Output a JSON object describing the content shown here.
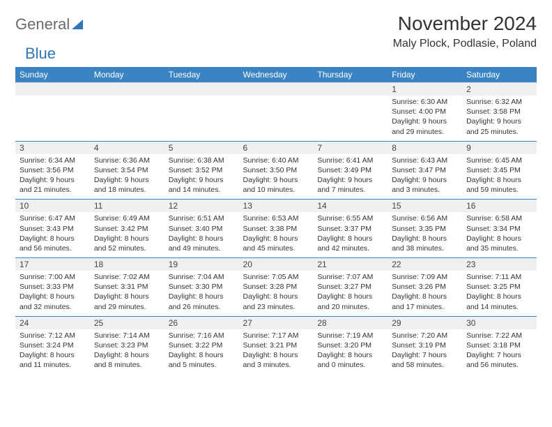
{
  "brand": {
    "part1": "General",
    "part2": "Blue"
  },
  "title": "November 2024",
  "location": "Maly Plock, Podlasie, Poland",
  "colors": {
    "header_bg": "#3b84c4",
    "header_text": "#ffffff",
    "daynum_bg": "#eef0f2",
    "border": "#3b84c4",
    "text": "#333333",
    "brand_gray": "#6a6a6a",
    "brand_blue": "#2e77b8"
  },
  "dow": [
    "Sunday",
    "Monday",
    "Tuesday",
    "Wednesday",
    "Thursday",
    "Friday",
    "Saturday"
  ],
  "weeks": [
    [
      {
        "n": "",
        "lines": [
          "",
          "",
          "",
          ""
        ]
      },
      {
        "n": "",
        "lines": [
          "",
          "",
          "",
          ""
        ]
      },
      {
        "n": "",
        "lines": [
          "",
          "",
          "",
          ""
        ]
      },
      {
        "n": "",
        "lines": [
          "",
          "",
          "",
          ""
        ]
      },
      {
        "n": "",
        "lines": [
          "",
          "",
          "",
          ""
        ]
      },
      {
        "n": "1",
        "lines": [
          "Sunrise: 6:30 AM",
          "Sunset: 4:00 PM",
          "Daylight: 9 hours",
          "and 29 minutes."
        ]
      },
      {
        "n": "2",
        "lines": [
          "Sunrise: 6:32 AM",
          "Sunset: 3:58 PM",
          "Daylight: 9 hours",
          "and 25 minutes."
        ]
      }
    ],
    [
      {
        "n": "3",
        "lines": [
          "Sunrise: 6:34 AM",
          "Sunset: 3:56 PM",
          "Daylight: 9 hours",
          "and 21 minutes."
        ]
      },
      {
        "n": "4",
        "lines": [
          "Sunrise: 6:36 AM",
          "Sunset: 3:54 PM",
          "Daylight: 9 hours",
          "and 18 minutes."
        ]
      },
      {
        "n": "5",
        "lines": [
          "Sunrise: 6:38 AM",
          "Sunset: 3:52 PM",
          "Daylight: 9 hours",
          "and 14 minutes."
        ]
      },
      {
        "n": "6",
        "lines": [
          "Sunrise: 6:40 AM",
          "Sunset: 3:50 PM",
          "Daylight: 9 hours",
          "and 10 minutes."
        ]
      },
      {
        "n": "7",
        "lines": [
          "Sunrise: 6:41 AM",
          "Sunset: 3:49 PM",
          "Daylight: 9 hours",
          "and 7 minutes."
        ]
      },
      {
        "n": "8",
        "lines": [
          "Sunrise: 6:43 AM",
          "Sunset: 3:47 PM",
          "Daylight: 9 hours",
          "and 3 minutes."
        ]
      },
      {
        "n": "9",
        "lines": [
          "Sunrise: 6:45 AM",
          "Sunset: 3:45 PM",
          "Daylight: 8 hours",
          "and 59 minutes."
        ]
      }
    ],
    [
      {
        "n": "10",
        "lines": [
          "Sunrise: 6:47 AM",
          "Sunset: 3:43 PM",
          "Daylight: 8 hours",
          "and 56 minutes."
        ]
      },
      {
        "n": "11",
        "lines": [
          "Sunrise: 6:49 AM",
          "Sunset: 3:42 PM",
          "Daylight: 8 hours",
          "and 52 minutes."
        ]
      },
      {
        "n": "12",
        "lines": [
          "Sunrise: 6:51 AM",
          "Sunset: 3:40 PM",
          "Daylight: 8 hours",
          "and 49 minutes."
        ]
      },
      {
        "n": "13",
        "lines": [
          "Sunrise: 6:53 AM",
          "Sunset: 3:38 PM",
          "Daylight: 8 hours",
          "and 45 minutes."
        ]
      },
      {
        "n": "14",
        "lines": [
          "Sunrise: 6:55 AM",
          "Sunset: 3:37 PM",
          "Daylight: 8 hours",
          "and 42 minutes."
        ]
      },
      {
        "n": "15",
        "lines": [
          "Sunrise: 6:56 AM",
          "Sunset: 3:35 PM",
          "Daylight: 8 hours",
          "and 38 minutes."
        ]
      },
      {
        "n": "16",
        "lines": [
          "Sunrise: 6:58 AM",
          "Sunset: 3:34 PM",
          "Daylight: 8 hours",
          "and 35 minutes."
        ]
      }
    ],
    [
      {
        "n": "17",
        "lines": [
          "Sunrise: 7:00 AM",
          "Sunset: 3:33 PM",
          "Daylight: 8 hours",
          "and 32 minutes."
        ]
      },
      {
        "n": "18",
        "lines": [
          "Sunrise: 7:02 AM",
          "Sunset: 3:31 PM",
          "Daylight: 8 hours",
          "and 29 minutes."
        ]
      },
      {
        "n": "19",
        "lines": [
          "Sunrise: 7:04 AM",
          "Sunset: 3:30 PM",
          "Daylight: 8 hours",
          "and 26 minutes."
        ]
      },
      {
        "n": "20",
        "lines": [
          "Sunrise: 7:05 AM",
          "Sunset: 3:28 PM",
          "Daylight: 8 hours",
          "and 23 minutes."
        ]
      },
      {
        "n": "21",
        "lines": [
          "Sunrise: 7:07 AM",
          "Sunset: 3:27 PM",
          "Daylight: 8 hours",
          "and 20 minutes."
        ]
      },
      {
        "n": "22",
        "lines": [
          "Sunrise: 7:09 AM",
          "Sunset: 3:26 PM",
          "Daylight: 8 hours",
          "and 17 minutes."
        ]
      },
      {
        "n": "23",
        "lines": [
          "Sunrise: 7:11 AM",
          "Sunset: 3:25 PM",
          "Daylight: 8 hours",
          "and 14 minutes."
        ]
      }
    ],
    [
      {
        "n": "24",
        "lines": [
          "Sunrise: 7:12 AM",
          "Sunset: 3:24 PM",
          "Daylight: 8 hours",
          "and 11 minutes."
        ]
      },
      {
        "n": "25",
        "lines": [
          "Sunrise: 7:14 AM",
          "Sunset: 3:23 PM",
          "Daylight: 8 hours",
          "and 8 minutes."
        ]
      },
      {
        "n": "26",
        "lines": [
          "Sunrise: 7:16 AM",
          "Sunset: 3:22 PM",
          "Daylight: 8 hours",
          "and 5 minutes."
        ]
      },
      {
        "n": "27",
        "lines": [
          "Sunrise: 7:17 AM",
          "Sunset: 3:21 PM",
          "Daylight: 8 hours",
          "and 3 minutes."
        ]
      },
      {
        "n": "28",
        "lines": [
          "Sunrise: 7:19 AM",
          "Sunset: 3:20 PM",
          "Daylight: 8 hours",
          "and 0 minutes."
        ]
      },
      {
        "n": "29",
        "lines": [
          "Sunrise: 7:20 AM",
          "Sunset: 3:19 PM",
          "Daylight: 7 hours",
          "and 58 minutes."
        ]
      },
      {
        "n": "30",
        "lines": [
          "Sunrise: 7:22 AM",
          "Sunset: 3:18 PM",
          "Daylight: 7 hours",
          "and 56 minutes."
        ]
      }
    ]
  ]
}
